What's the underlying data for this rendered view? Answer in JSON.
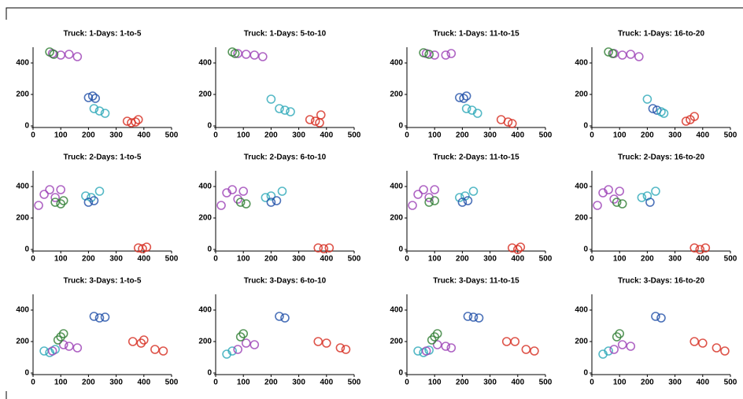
{
  "chart_data": [
    {
      "type": "scatter",
      "title": "Truck: 1-Days: 1-to-5",
      "xlim": [
        0,
        500
      ],
      "ylim": [
        0,
        500
      ],
      "xticks": [
        0,
        100,
        200,
        300,
        400,
        500
      ],
      "yticks": [
        0,
        200,
        400
      ],
      "series": [
        {
          "color": "#9b3fb5",
          "x": [
            70,
            100,
            130,
            160
          ],
          "values": [
            460,
            450,
            455,
            440
          ]
        },
        {
          "color": "#2e7d32",
          "x": [
            60,
            75
          ],
          "values": [
            470,
            455
          ]
        },
        {
          "color": "#1f4fa8",
          "x": [
            200,
            215,
            225
          ],
          "values": [
            180,
            190,
            175
          ]
        },
        {
          "color": "#2aa8b8",
          "x": [
            220,
            240,
            260
          ],
          "values": [
            110,
            95,
            80
          ]
        },
        {
          "color": "#d62a1e",
          "x": [
            340,
            355,
            370,
            380
          ],
          "values": [
            30,
            20,
            25,
            40
          ]
        }
      ]
    },
    {
      "type": "scatter",
      "title": "Truck: 1-Days: 5-to-10",
      "xlim": [
        0,
        500
      ],
      "ylim": [
        0,
        500
      ],
      "xticks": [
        0,
        100,
        200,
        300,
        400,
        500
      ],
      "yticks": [
        0,
        200,
        400
      ],
      "series": [
        {
          "color": "#9b3fb5",
          "x": [
            80,
            110,
            140,
            170
          ],
          "values": [
            460,
            455,
            450,
            440
          ]
        },
        {
          "color": "#2e7d32",
          "x": [
            60,
            70
          ],
          "values": [
            470,
            460
          ]
        },
        {
          "color": "#2aa8b8",
          "x": [
            200,
            230,
            250,
            270
          ],
          "values": [
            170,
            110,
            100,
            90
          ]
        },
        {
          "color": "#d62a1e",
          "x": [
            340,
            360,
            375,
            380
          ],
          "values": [
            40,
            30,
            20,
            70
          ]
        }
      ]
    },
    {
      "type": "scatter",
      "title": "Truck: 1-Days: 11-to-15",
      "xlim": [
        0,
        500
      ],
      "ylim": [
        0,
        500
      ],
      "xticks": [
        0,
        100,
        200,
        300,
        400,
        500
      ],
      "yticks": [
        0,
        200,
        400
      ],
      "series": [
        {
          "color": "#9b3fb5",
          "x": [
            70,
            100,
            140,
            160
          ],
          "values": [
            460,
            450,
            450,
            460
          ]
        },
        {
          "color": "#2e7d32",
          "x": [
            60,
            80
          ],
          "values": [
            465,
            455
          ]
        },
        {
          "color": "#1f4fa8",
          "x": [
            190,
            205,
            215
          ],
          "values": [
            180,
            175,
            190
          ]
        },
        {
          "color": "#2aa8b8",
          "x": [
            215,
            235,
            255
          ],
          "values": [
            110,
            100,
            80
          ]
        },
        {
          "color": "#d62a1e",
          "x": [
            340,
            365,
            380
          ],
          "values": [
            40,
            25,
            15
          ]
        }
      ]
    },
    {
      "type": "scatter",
      "title": "Truck: 1-Days: 16-to-20",
      "xlim": [
        0,
        500
      ],
      "ylim": [
        0,
        500
      ],
      "xticks": [
        0,
        100,
        200,
        300,
        400,
        500
      ],
      "yticks": [
        0,
        200,
        400
      ],
      "series": [
        {
          "color": "#9b3fb5",
          "x": [
            80,
            110,
            140,
            170
          ],
          "values": [
            460,
            450,
            455,
            440
          ]
        },
        {
          "color": "#2e7d32",
          "x": [
            60,
            75
          ],
          "values": [
            470,
            460
          ]
        },
        {
          "color": "#1f4fa8",
          "x": [
            220,
            235
          ],
          "values": [
            110,
            100
          ]
        },
        {
          "color": "#2aa8b8",
          "x": [
            200,
            250,
            260
          ],
          "values": [
            170,
            90,
            80
          ]
        },
        {
          "color": "#d62a1e",
          "x": [
            340,
            355,
            370
          ],
          "values": [
            30,
            40,
            60
          ]
        }
      ]
    },
    {
      "type": "scatter",
      "title": "Truck: 2-Days: 1-to-5",
      "xlim": [
        0,
        500
      ],
      "ylim": [
        0,
        500
      ],
      "xticks": [
        0,
        100,
        200,
        300,
        400,
        500
      ],
      "yticks": [
        0,
        200,
        400
      ],
      "series": [
        {
          "color": "#9b3fb5",
          "x": [
            20,
            40,
            60,
            80,
            100
          ],
          "values": [
            280,
            350,
            380,
            330,
            380
          ]
        },
        {
          "color": "#2e7d32",
          "x": [
            80,
            100,
            110
          ],
          "values": [
            300,
            290,
            310
          ]
        },
        {
          "color": "#2aa8b8",
          "x": [
            190,
            210,
            240
          ],
          "values": [
            340,
            330,
            370
          ]
        },
        {
          "color": "#1f4fa8",
          "x": [
            200,
            220
          ],
          "values": [
            300,
            310
          ]
        },
        {
          "color": "#d62a1e",
          "x": [
            380,
            395,
            410
          ],
          "values": [
            10,
            5,
            15
          ]
        }
      ]
    },
    {
      "type": "scatter",
      "title": "Truck: 2-Days: 6-to-10",
      "xlim": [
        0,
        500
      ],
      "ylim": [
        0,
        500
      ],
      "xticks": [
        0,
        100,
        200,
        300,
        400,
        500
      ],
      "yticks": [
        0,
        200,
        400
      ],
      "series": [
        {
          "color": "#9b3fb5",
          "x": [
            20,
            40,
            60,
            80,
            100
          ],
          "values": [
            280,
            360,
            380,
            320,
            370
          ]
        },
        {
          "color": "#2e7d32",
          "x": [
            90,
            110
          ],
          "values": [
            300,
            290
          ]
        },
        {
          "color": "#2aa8b8",
          "x": [
            180,
            200,
            240
          ],
          "values": [
            330,
            340,
            370
          ]
        },
        {
          "color": "#1f4fa8",
          "x": [
            200,
            220
          ],
          "values": [
            300,
            310
          ]
        },
        {
          "color": "#d62a1e",
          "x": [
            370,
            390,
            410
          ],
          "values": [
            10,
            5,
            10
          ]
        }
      ]
    },
    {
      "type": "scatter",
      "title": "Truck: 2-Days: 11-to-15",
      "xlim": [
        0,
        500
      ],
      "ylim": [
        0,
        500
      ],
      "xticks": [
        0,
        100,
        200,
        300,
        400,
        500
      ],
      "yticks": [
        0,
        200,
        400
      ],
      "series": [
        {
          "color": "#9b3fb5",
          "x": [
            20,
            40,
            60,
            80,
            100
          ],
          "values": [
            280,
            350,
            380,
            330,
            380
          ]
        },
        {
          "color": "#2e7d32",
          "x": [
            80,
            100
          ],
          "values": [
            300,
            310
          ]
        },
        {
          "color": "#2aa8b8",
          "x": [
            190,
            210,
            240
          ],
          "values": [
            330,
            340,
            370
          ]
        },
        {
          "color": "#1f4fa8",
          "x": [
            200,
            220
          ],
          "values": [
            300,
            310
          ]
        },
        {
          "color": "#d62a1e",
          "x": [
            380,
            400,
            410
          ],
          "values": [
            10,
            0,
            15
          ]
        }
      ]
    },
    {
      "type": "scatter",
      "title": "Truck: 2-Days: 16-to-20",
      "xlim": [
        0,
        500
      ],
      "ylim": [
        0,
        500
      ],
      "xticks": [
        0,
        100,
        200,
        300,
        400,
        500
      ],
      "yticks": [
        0,
        200,
        400
      ],
      "series": [
        {
          "color": "#9b3fb5",
          "x": [
            20,
            40,
            60,
            80,
            100
          ],
          "values": [
            280,
            360,
            380,
            320,
            370
          ]
        },
        {
          "color": "#2e7d32",
          "x": [
            90,
            110
          ],
          "values": [
            300,
            290
          ]
        },
        {
          "color": "#2aa8b8",
          "x": [
            180,
            200,
            230
          ],
          "values": [
            330,
            340,
            370
          ]
        },
        {
          "color": "#1f4fa8",
          "x": [
            210
          ],
          "values": [
            300
          ]
        },
        {
          "color": "#d62a1e",
          "x": [
            370,
            390,
            410
          ],
          "values": [
            10,
            0,
            10
          ]
        }
      ]
    },
    {
      "type": "scatter",
      "title": "Truck: 3-Days: 1-to-5",
      "xlim": [
        0,
        500
      ],
      "ylim": [
        0,
        500
      ],
      "xticks": [
        0,
        100,
        200,
        300,
        400,
        500
      ],
      "yticks": [
        0,
        200,
        400
      ],
      "series": [
        {
          "color": "#2aa8b8",
          "x": [
            40,
            60,
            80
          ],
          "values": [
            140,
            130,
            150
          ]
        },
        {
          "color": "#9b3fb5",
          "x": [
            70,
            110,
            130,
            160
          ],
          "values": [
            140,
            180,
            170,
            160
          ]
        },
        {
          "color": "#2e7d32",
          "x": [
            90,
            100,
            110
          ],
          "values": [
            210,
            230,
            250
          ]
        },
        {
          "color": "#1f4fa8",
          "x": [
            220,
            240,
            260
          ],
          "values": [
            360,
            350,
            355
          ]
        },
        {
          "color": "#d62a1e",
          "x": [
            360,
            390,
            400,
            440,
            470
          ],
          "values": [
            200,
            190,
            210,
            150,
            140
          ]
        }
      ]
    },
    {
      "type": "scatter",
      "title": "Truck: 3-Days: 6-to-10",
      "xlim": [
        0,
        500
      ],
      "ylim": [
        0,
        500
      ],
      "xticks": [
        0,
        100,
        200,
        300,
        400,
        500
      ],
      "yticks": [
        0,
        200,
        400
      ],
      "series": [
        {
          "color": "#2aa8b8",
          "x": [
            40,
            60
          ],
          "values": [
            120,
            140
          ]
        },
        {
          "color": "#9b3fb5",
          "x": [
            80,
            110,
            140
          ],
          "values": [
            150,
            190,
            180
          ]
        },
        {
          "color": "#2e7d32",
          "x": [
            90,
            100
          ],
          "values": [
            230,
            250
          ]
        },
        {
          "color": "#1f4fa8",
          "x": [
            230,
            250
          ],
          "values": [
            360,
            350
          ]
        },
        {
          "color": "#d62a1e",
          "x": [
            370,
            400,
            450,
            470
          ],
          "values": [
            200,
            190,
            160,
            150
          ]
        }
      ]
    },
    {
      "type": "scatter",
      "title": "Truck: 3-Days: 11-to-15",
      "xlim": [
        0,
        500
      ],
      "ylim": [
        0,
        500
      ],
      "xticks": [
        0,
        100,
        200,
        300,
        400,
        500
      ],
      "yticks": [
        0,
        200,
        400
      ],
      "series": [
        {
          "color": "#2aa8b8",
          "x": [
            40,
            60,
            80
          ],
          "values": [
            140,
            130,
            145
          ]
        },
        {
          "color": "#9b3fb5",
          "x": [
            70,
            110,
            140,
            160
          ],
          "values": [
            140,
            180,
            170,
            160
          ]
        },
        {
          "color": "#2e7d32",
          "x": [
            90,
            100,
            110
          ],
          "values": [
            210,
            230,
            250
          ]
        },
        {
          "color": "#1f4fa8",
          "x": [
            220,
            240,
            260
          ],
          "values": [
            360,
            355,
            350
          ]
        },
        {
          "color": "#d62a1e",
          "x": [
            360,
            390,
            430,
            460
          ],
          "values": [
            200,
            200,
            150,
            140
          ]
        }
      ]
    },
    {
      "type": "scatter",
      "title": "Truck: 3-Days: 16-to-20",
      "xlim": [
        0,
        500
      ],
      "ylim": [
        0,
        500
      ],
      "xticks": [
        0,
        100,
        200,
        300,
        400,
        500
      ],
      "yticks": [
        0,
        200,
        400
      ],
      "series": [
        {
          "color": "#2aa8b8",
          "x": [
            40,
            60
          ],
          "values": [
            120,
            140
          ]
        },
        {
          "color": "#9b3fb5",
          "x": [
            80,
            110,
            140
          ],
          "values": [
            150,
            180,
            170
          ]
        },
        {
          "color": "#2e7d32",
          "x": [
            90,
            100
          ],
          "values": [
            230,
            250
          ]
        },
        {
          "color": "#1f4fa8",
          "x": [
            230,
            250
          ],
          "values": [
            360,
            350
          ]
        },
        {
          "color": "#d62a1e",
          "x": [
            370,
            400,
            450,
            480
          ],
          "values": [
            200,
            190,
            160,
            140
          ]
        }
      ]
    }
  ]
}
